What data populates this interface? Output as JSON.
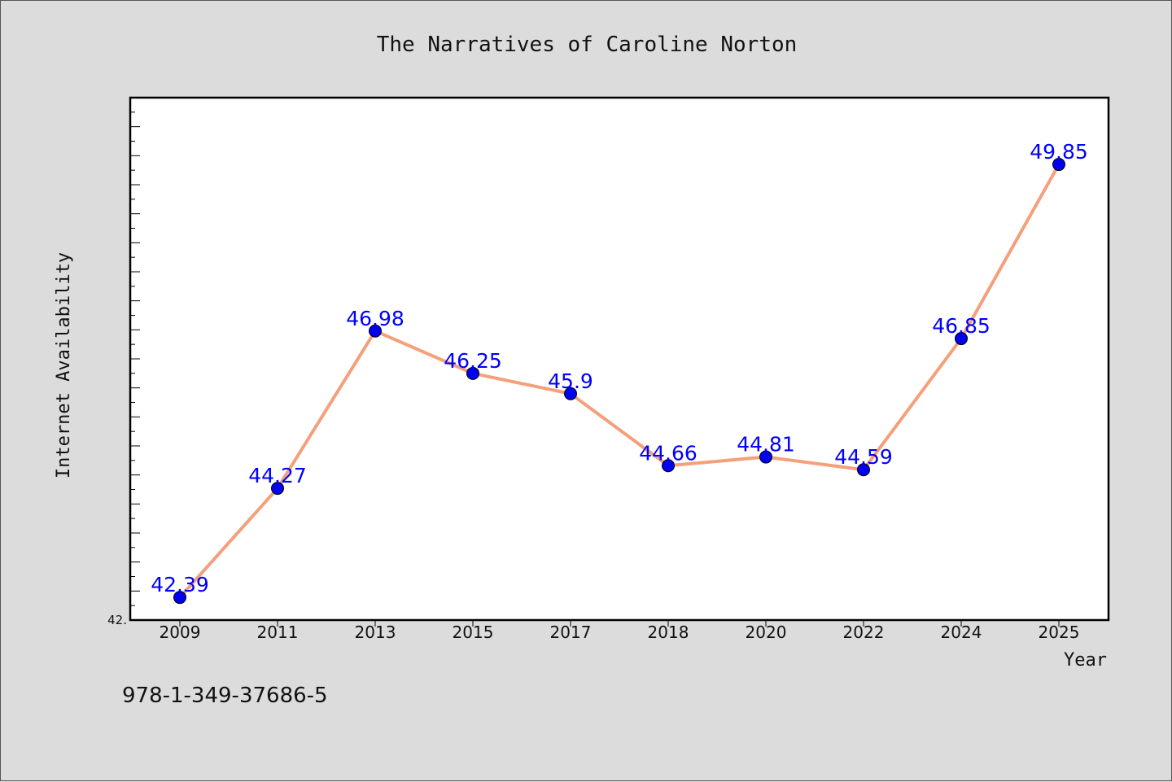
{
  "chart_data": {
    "type": "line",
    "title": "The Narratives of Caroline Norton",
    "xlabel": "Year",
    "ylabel": "Internet Availability",
    "categories": [
      "2009",
      "2011",
      "2013",
      "2015",
      "2017",
      "2018",
      "2020",
      "2022",
      "2024",
      "2025"
    ],
    "series": [
      {
        "values": [
          42.39,
          44.27,
          46.98,
          46.25,
          45.9,
          44.66,
          44.81,
          44.59,
          46.85,
          49.85
        ],
        "data_labels": [
          "42.39",
          "44.27",
          "46.98",
          "46.25",
          "45.9",
          "44.66",
          "44.81",
          "44.59",
          "46.85",
          "49.85"
        ],
        "line_color": "#f4a07c",
        "marker_color": "#0000ee"
      }
    ],
    "ylim": [
      42.0,
      51.0
    ],
    "y_tick_labels": [
      "42."
    ],
    "grid": false,
    "legend": "none"
  },
  "annotation": "978-1-349-37686-5",
  "colors": {
    "background": "#dcdcdc",
    "plot_background": "#ffffff",
    "label_color": "#0000ff"
  }
}
